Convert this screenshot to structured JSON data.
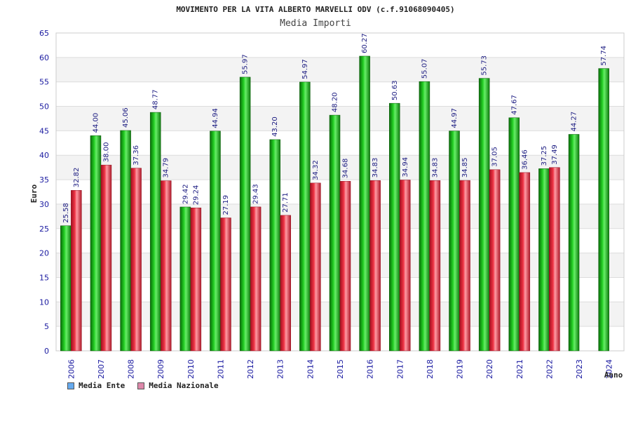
{
  "chart_data": {
    "type": "bar",
    "title": "MOVIMENTO PER LA VITA ALBERTO MARVELLI ODV (c.f.91068090405)",
    "subtitle": "Media Importi",
    "xlabel": "Anno",
    "ylabel": "Euro",
    "ylim": [
      0,
      65
    ],
    "yticks": [
      0,
      5,
      10,
      15,
      20,
      25,
      30,
      35,
      40,
      45,
      50,
      55,
      60,
      65
    ],
    "categories": [
      "2006",
      "2007",
      "2008",
      "2009",
      "2010",
      "2011",
      "2012",
      "2013",
      "2014",
      "2015",
      "2016",
      "2017",
      "2018",
      "2019",
      "2020",
      "2021",
      "2022",
      "2023",
      "2024"
    ],
    "series": [
      {
        "name": "Media Ente",
        "labels": [
          "25.58",
          "44.00",
          "45.06",
          "48.77",
          "29.42",
          "44.94",
          "55.97",
          "43.20",
          "54.97",
          "48.20",
          "60.27",
          "50.63",
          "55.07",
          "44.97",
          "55.73",
          "47.67",
          "37.25",
          "44.27",
          "57.74"
        ],
        "values": [
          25.58,
          44.0,
          45.06,
          48.77,
          29.42,
          44.94,
          55.97,
          43.2,
          54.97,
          48.2,
          60.27,
          50.63,
          55.07,
          44.97,
          55.73,
          47.67,
          37.25,
          44.27,
          57.74
        ]
      },
      {
        "name": "Media Nazionale",
        "labels": [
          "32.82",
          "38.00",
          "37.36",
          "34.79",
          "29.24",
          "27.19",
          "29.43",
          "27.71",
          "34.32",
          "34.68",
          "34.83",
          "34.94",
          "34.83",
          "34.85",
          "37.05",
          "36.46",
          "37.49",
          null,
          null
        ],
        "values": [
          32.82,
          38.0,
          37.36,
          34.79,
          29.24,
          27.19,
          29.43,
          27.71,
          34.32,
          34.68,
          34.83,
          34.94,
          34.83,
          34.85,
          37.05,
          36.46,
          37.49,
          null,
          null
        ]
      }
    ],
    "legend": [
      {
        "label": "Media Ente",
        "color": "#66aaee"
      },
      {
        "label": "Media Nazionale",
        "color": "#dd88aa"
      }
    ],
    "colors": {
      "ente": "#22bb22",
      "nazionale": "#ee3344",
      "band": "#f3f3f3",
      "grid": "#dddddd"
    }
  }
}
